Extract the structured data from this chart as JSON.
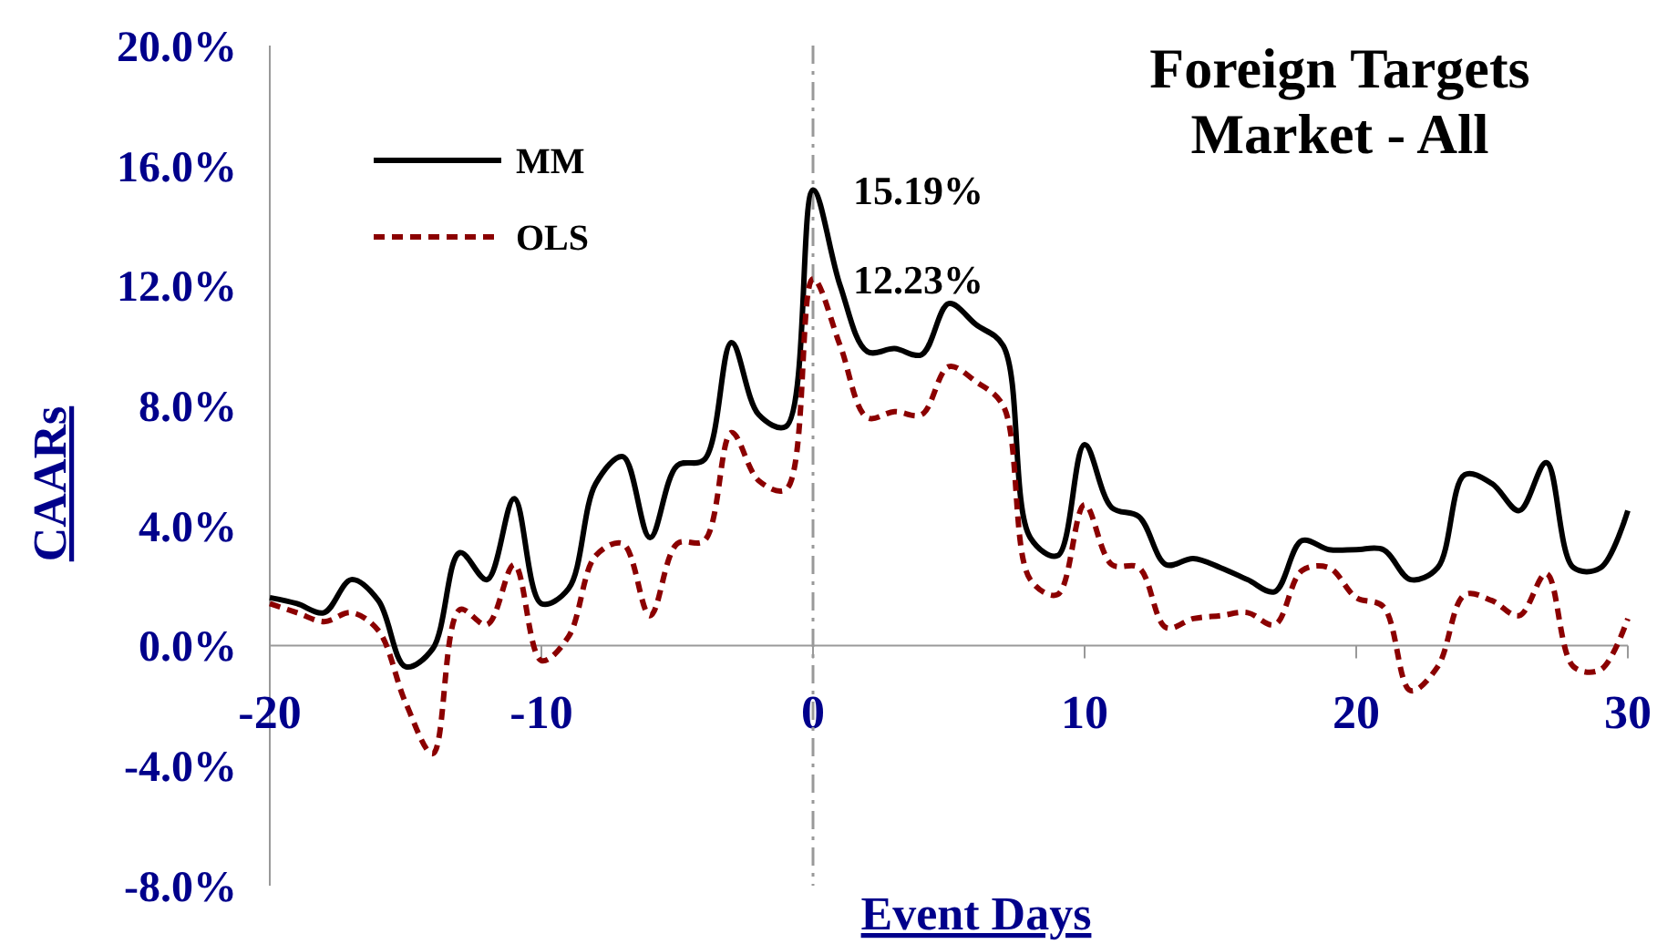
{
  "chart_data": {
    "type": "line",
    "title": "Foreign Targets\nMarket - All",
    "xlabel": "Event Days",
    "ylabel": "CAARs",
    "x": [
      -20,
      -19,
      -18,
      -17,
      -16,
      -15,
      -14,
      -13,
      -12,
      -11,
      -10,
      -9,
      -8,
      -7,
      -6,
      -5,
      -4,
      -3,
      -2,
      -1,
      0,
      1,
      2,
      3,
      4,
      5,
      6,
      7,
      8,
      9,
      10,
      11,
      12,
      13,
      14,
      15,
      16,
      17,
      18,
      19,
      20,
      21,
      22,
      23,
      24,
      25,
      26,
      27,
      28,
      29,
      30
    ],
    "series": [
      {
        "name": "MM",
        "color": "#000000",
        "line_style": "solid",
        "values": [
          1.6,
          1.4,
          1.1,
          2.2,
          1.5,
          -0.7,
          -0.1,
          3.1,
          2.2,
          4.9,
          1.4,
          1.9,
          5.4,
          6.3,
          3.6,
          6.0,
          6.2,
          10.1,
          7.7,
          7.3,
          15.19,
          12.0,
          9.8,
          9.9,
          9.7,
          11.4,
          10.7,
          10.0,
          3.6,
          3.0,
          6.7,
          4.6,
          4.3,
          2.7,
          2.9,
          2.6,
          2.2,
          1.8,
          3.5,
          3.2,
          3.2,
          3.2,
          2.2,
          2.6,
          5.7,
          5.4,
          4.5,
          6.1,
          2.6,
          2.6,
          4.5
        ]
      },
      {
        "name": "OLS",
        "color": "#8b0000",
        "line_style": "dashed",
        "values": [
          1.4,
          1.1,
          0.8,
          1.1,
          0.5,
          -1.9,
          -3.6,
          1.2,
          0.7,
          2.7,
          -0.5,
          0.3,
          3.0,
          3.4,
          1.0,
          3.4,
          3.5,
          7.1,
          5.5,
          5.2,
          12.23,
          10.0,
          7.6,
          7.8,
          7.7,
          9.3,
          8.8,
          8.0,
          2.2,
          1.7,
          4.7,
          2.7,
          2.6,
          0.6,
          0.9,
          1.0,
          1.1,
          0.7,
          2.5,
          2.6,
          1.6,
          1.3,
          -1.5,
          -0.7,
          1.7,
          1.5,
          1.0,
          2.4,
          -0.7,
          -0.8,
          0.9
        ]
      }
    ],
    "xlim": [
      -20,
      30
    ],
    "xticks": [
      -20,
      -10,
      0,
      10,
      20,
      30
    ],
    "ylim": [
      -8,
      20
    ],
    "yticks": [
      {
        "value": -8,
        "label": "-8.0%"
      },
      {
        "value": -4,
        "label": "-4.0%"
      },
      {
        "value": 0,
        "label": "0.0%"
      },
      {
        "value": 4,
        "label": "4.0%"
      },
      {
        "value": 8,
        "label": "8.0%"
      },
      {
        "value": 12,
        "label": "12.0%"
      },
      {
        "value": 16,
        "label": "16.0%"
      },
      {
        "value": 20,
        "label": "20.0%"
      }
    ],
    "annotations": [
      {
        "text": "15.19%",
        "x": 0,
        "y": 15.19
      },
      {
        "text": "12.23%",
        "x": 0,
        "y": 12.23
      }
    ],
    "ref_lines": [
      {
        "axis": "x",
        "value": 0,
        "color": "#999999",
        "line_style": "dashed"
      }
    ],
    "legend": "top left",
    "grid": false,
    "marker": "none"
  }
}
